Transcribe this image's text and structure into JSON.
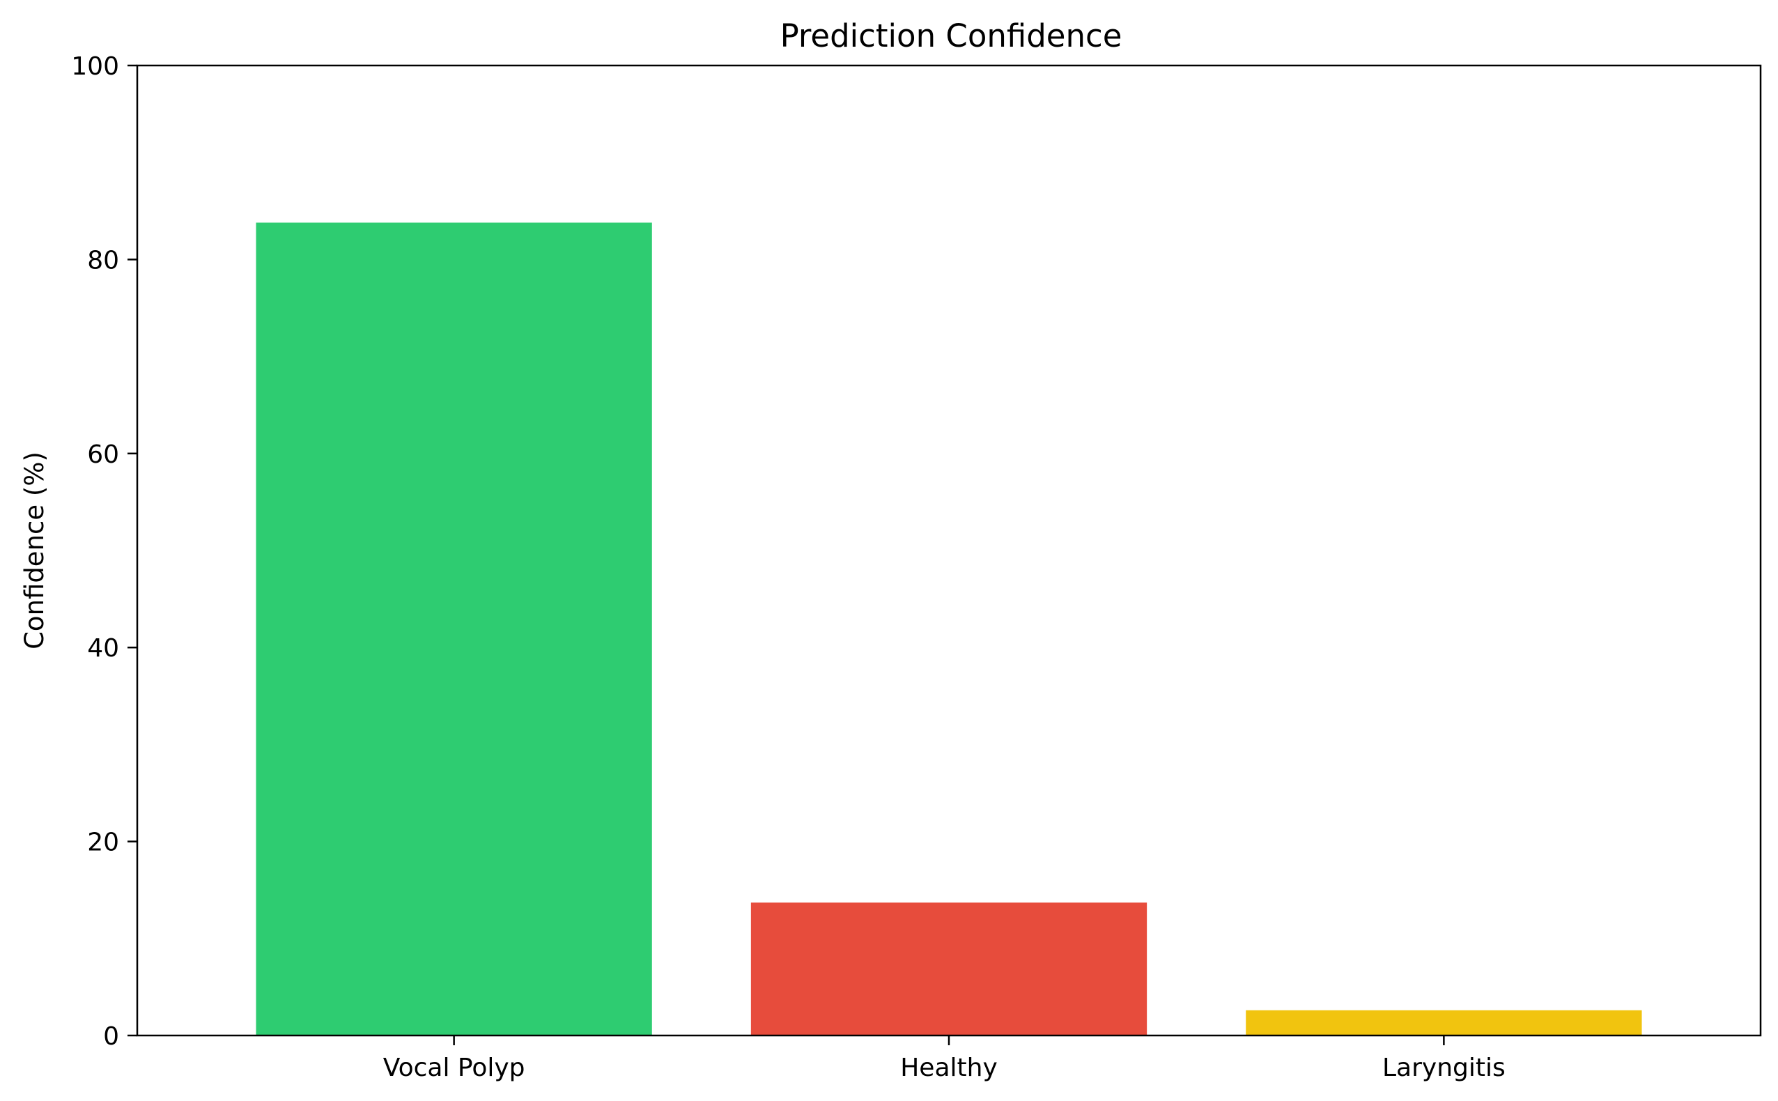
{
  "chart_data": {
    "type": "bar",
    "title": "Prediction Confidence",
    "xlabel": "",
    "ylabel": "Confidence (%)",
    "categories": [
      "Vocal Polyp",
      "Healthy",
      "Laryngitis"
    ],
    "values": [
      83.8,
      13.7,
      2.6
    ],
    "colors": [
      "#2ecc71",
      "#e74c3c",
      "#f1c40f"
    ],
    "ylim": [
      0,
      100
    ],
    "yticks": [
      0,
      20,
      40,
      60,
      80,
      100
    ],
    "grid": false,
    "legend": "none"
  }
}
